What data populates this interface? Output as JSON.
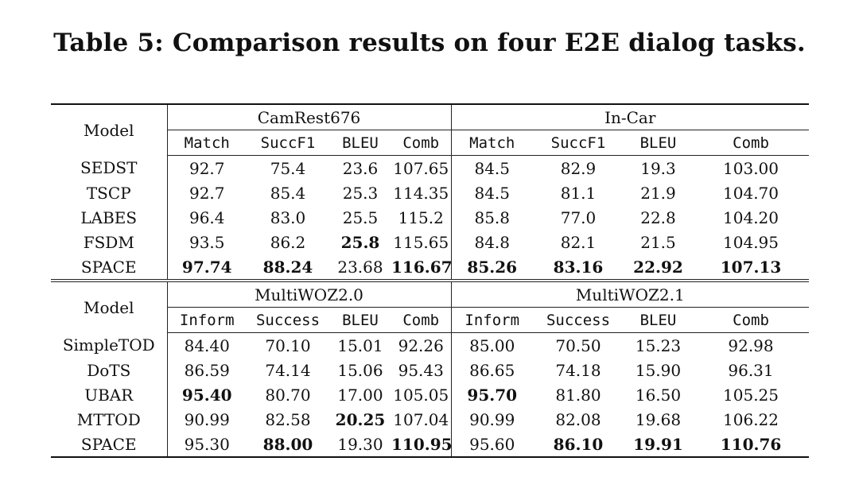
{
  "caption": "Table 5: Comparison results on four E2E dialog tasks.",
  "sections": [
    {
      "model_header": "Model",
      "groups": [
        "CamRest676",
        "In-Car"
      ],
      "metrics": [
        "Match",
        "SuccF1",
        "BLEU",
        "Comb",
        "Match",
        "SuccF1",
        "BLEU",
        "Comb"
      ],
      "rows": [
        {
          "model": "SEDST",
          "values": [
            "92.7",
            "75.4",
            "23.6",
            "107.65",
            "84.5",
            "82.9",
            "19.3",
            "103.00"
          ],
          "bold": []
        },
        {
          "model": "TSCP",
          "values": [
            "92.7",
            "85.4",
            "25.3",
            "114.35",
            "84.5",
            "81.1",
            "21.9",
            "104.70"
          ],
          "bold": []
        },
        {
          "model": "LABES",
          "values": [
            "96.4",
            "83.0",
            "25.5",
            "115.2",
            "85.8",
            "77.0",
            "22.8",
            "104.20"
          ],
          "bold": []
        },
        {
          "model": "FSDM",
          "values": [
            "93.5",
            "86.2",
            "25.8",
            "115.65",
            "84.8",
            "82.1",
            "21.5",
            "104.95"
          ],
          "bold": [
            2
          ]
        },
        {
          "model": "SPACE",
          "values": [
            "97.74",
            "88.24",
            "23.68",
            "116.67",
            "85.26",
            "83.16",
            "22.92",
            "107.13"
          ],
          "bold": [
            0,
            1,
            3,
            4,
            5,
            6,
            7
          ]
        }
      ]
    },
    {
      "model_header": "Model",
      "groups": [
        "MultiWOZ2.0",
        "MultiWOZ2.1"
      ],
      "metrics": [
        "Inform",
        "Success",
        "BLEU",
        "Comb",
        "Inform",
        "Success",
        "BLEU",
        "Comb"
      ],
      "rows": [
        {
          "model": "SimpleTOD",
          "values": [
            "84.40",
            "70.10",
            "15.01",
            "92.26",
            "85.00",
            "70.50",
            "15.23",
            "92.98"
          ],
          "bold": []
        },
        {
          "model": "DoTS",
          "values": [
            "86.59",
            "74.14",
            "15.06",
            "95.43",
            "86.65",
            "74.18",
            "15.90",
            "96.31"
          ],
          "bold": []
        },
        {
          "model": "UBAR",
          "values": [
            "95.40",
            "80.70",
            "17.00",
            "105.05",
            "95.70",
            "81.80",
            "16.50",
            "105.25"
          ],
          "bold": [
            0,
            4
          ]
        },
        {
          "model": "MTTOD",
          "values": [
            "90.99",
            "82.58",
            "20.25",
            "107.04",
            "90.99",
            "82.08",
            "19.68",
            "106.22"
          ],
          "bold": [
            2
          ]
        },
        {
          "model": "SPACE",
          "values": [
            "95.30",
            "88.00",
            "19.30",
            "110.95",
            "95.60",
            "86.10",
            "19.91",
            "110.76"
          ],
          "bold": [
            1,
            3,
            5,
            6,
            7
          ]
        }
      ]
    }
  ]
}
